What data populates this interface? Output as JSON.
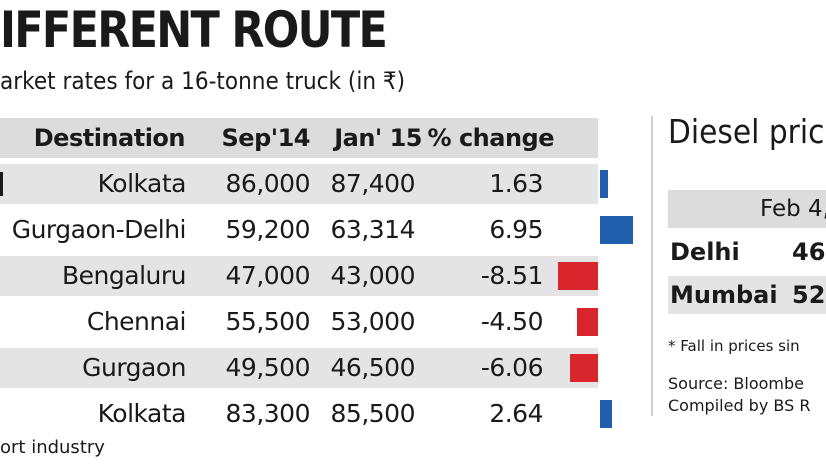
{
  "title": "IFFERENT ROUTE",
  "subtitle": "arket rates for a 16-tonne truck (in ₹)",
  "table": {
    "headers": {
      "destination": "Destination",
      "sep14": "Sep'14",
      "jan15": "Jan' 15",
      "change": "% change"
    },
    "rows": [
      {
        "destination": "Kolkata",
        "sep14": "86,000",
        "jan15": "87,400",
        "change": "1.63",
        "change_value": 1.63
      },
      {
        "destination": "Gurgaon-Delhi",
        "sep14": "59,200",
        "jan15": "63,314",
        "change": "6.95",
        "change_value": 6.95
      },
      {
        "destination": "Bengaluru",
        "sep14": "47,000",
        "jan15": "43,000",
        "change": "-8.51",
        "change_value": -8.51
      },
      {
        "destination": "Chennai",
        "sep14": "55,500",
        "jan15": "53,000",
        "change": "-4.50",
        "change_value": -4.5
      },
      {
        "destination": "Gurgaon",
        "sep14": "49,500",
        "jan15": "46,500",
        "change": "-6.06",
        "change_value": -6.06
      },
      {
        "destination": "Kolkata",
        "sep14": "83,300",
        "jan15": "85,500",
        "change": "2.64",
        "change_value": 2.64
      }
    ]
  },
  "diesel": {
    "title": "Diesel pric",
    "date": "Feb 4,",
    "rows": [
      {
        "city": "Delhi",
        "value": "46."
      },
      {
        "city": "Mumbai",
        "value": "52."
      }
    ],
    "note": "* Fall in prices sin",
    "source_line1": "Source: Bloombe",
    "source_line2": "Compiled by BS R"
  },
  "footer": "ort industry",
  "colors": {
    "positive": "#1f5fae",
    "negative": "#d9262c",
    "row_band": "#e4e4e4",
    "header_band": "#dcdcdc"
  }
}
